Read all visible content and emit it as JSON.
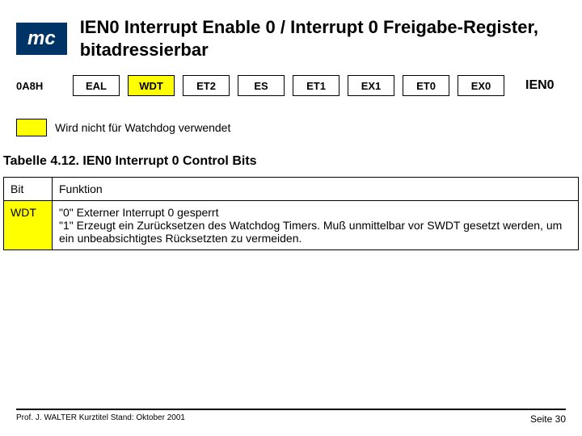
{
  "header": {
    "mc_label": "mc",
    "title": "IEN0 Interrupt Enable 0 / Interrupt 0 Freigabe-Register, bitadressierbar"
  },
  "register": {
    "address": "0A8H",
    "bits": [
      "EAL",
      "WDT",
      "ET2",
      "ES",
      "ET1",
      "EX1",
      "ET0",
      "EX0"
    ],
    "highlight_index": 1,
    "name": "IEN0"
  },
  "note": {
    "text": "Wird nicht für Watchdog verwendet"
  },
  "table": {
    "caption": "Tabelle 4.12. IEN0 Interrupt 0 Control Bits",
    "headers": [
      "Bit",
      "Funktion"
    ],
    "rows": [
      {
        "bit": "WDT",
        "desc": "\"0\" Externer Interrupt 0 gesperrt\n\"1\" Erzeugt ein Zurücksetzen des Watchdog Timers. Muß unmittelbar vor SWDT gesetzt werden, um ein unbeabsichtigtes Rücksetzten zu vermeiden."
      }
    ]
  },
  "footer": {
    "left": "Prof. J. WALTER   Kurztitel  Stand: Oktober 2001",
    "right": "Seite 30"
  },
  "colors": {
    "mc_bg": "#003366",
    "highlight": "#ffff00",
    "border": "#000000",
    "bg": "#ffffff"
  }
}
